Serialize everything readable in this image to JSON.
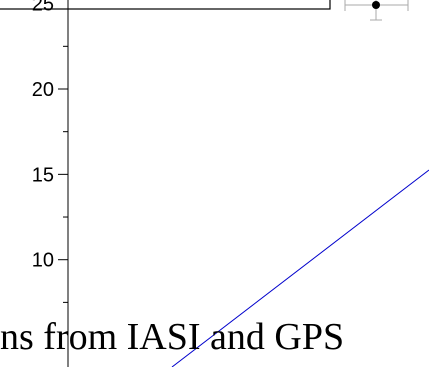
{
  "chart_data": {
    "type": "scatter",
    "title": "",
    "xlabel": "",
    "ylabel": "",
    "ylim": [
      6.5,
      25.5
    ],
    "y_ticks": [
      10,
      15,
      20
    ],
    "y_tick_labels": [
      "10",
      "15",
      "20"
    ],
    "top_tick_label_partial": "25",
    "legend_position": "top-left",
    "series": [
      {
        "kind": "errorbar_point",
        "x": 0.5,
        "y": 25,
        "xerr": 0.4,
        "yerr": 0.8,
        "color": "#000000",
        "err_color": "#aaaaaa"
      },
      {
        "kind": "fit_line",
        "x": [
          0,
          1
        ],
        "y": [
          6.5,
          15.5
        ],
        "color": "#0000cc"
      }
    ],
    "grid": false
  },
  "caption": {
    "text": "ns from IASI and GPS"
  }
}
